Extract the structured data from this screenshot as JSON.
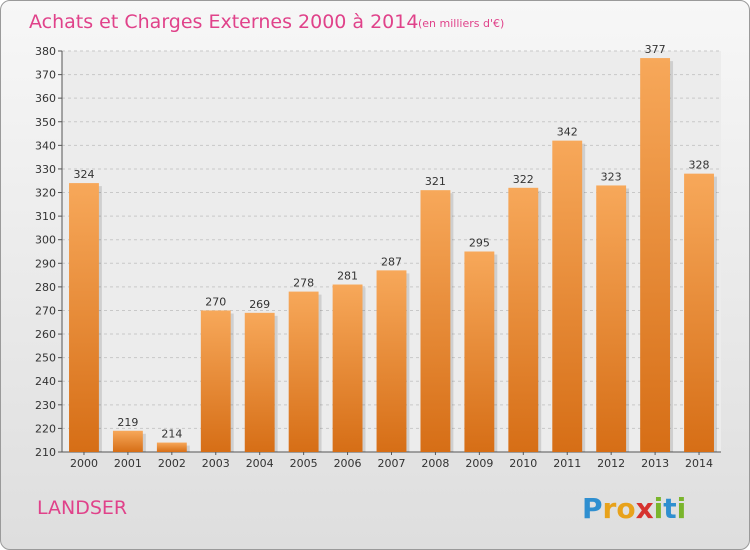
{
  "chart_data": {
    "type": "bar",
    "title": "Achats et Charges Externes 2000 à 2014",
    "subtitle": "(en milliers d'€)",
    "xlabel": "",
    "ylabel": "",
    "categories": [
      "2000",
      "2001",
      "2002",
      "2003",
      "2004",
      "2005",
      "2006",
      "2007",
      "2008",
      "2009",
      "2010",
      "2011",
      "2012",
      "2013",
      "2014"
    ],
    "values": [
      324,
      219,
      214,
      270,
      269,
      278,
      281,
      287,
      321,
      295,
      322,
      342,
      323,
      377,
      328
    ],
    "ylim": [
      210,
      380
    ],
    "yticks": [
      210,
      220,
      230,
      240,
      250,
      260,
      270,
      280,
      290,
      300,
      310,
      320,
      330,
      340,
      350,
      360,
      370,
      380
    ],
    "grid": true,
    "bar_color": "#f08a2a",
    "bar_color_light": "#f7a85a",
    "bar_color_dark": "#d66e16"
  },
  "commune": "LANDSER",
  "brand": {
    "letters": [
      "P",
      "r",
      "o",
      "x",
      "i",
      "t",
      "i"
    ],
    "colors": [
      "#2f8fd0",
      "#e8a21b",
      "#e8a21b",
      "#d6322f",
      "#7ab52c",
      "#2f8fd0",
      "#7ab52c"
    ]
  }
}
